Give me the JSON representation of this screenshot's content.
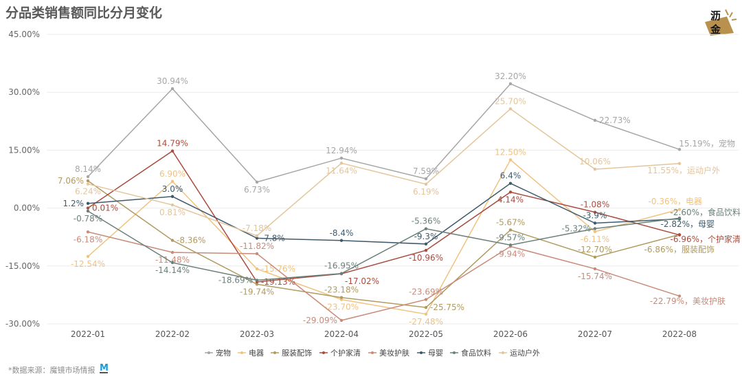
{
  "chart_data": {
    "type": "line",
    "title": "分品类销售额同比分月变化",
    "categories": [
      "2022-01",
      "2022-02",
      "2022-03",
      "2022-04",
      "2022-05",
      "2022-06",
      "2022-07",
      "2022-08"
    ],
    "ylim": [
      -30,
      45
    ],
    "yticks": [
      "-30.00%",
      "-15.00%",
      "0.00%",
      "15.00%",
      "30.00%",
      "45.00%"
    ],
    "ytick_values": [
      -30,
      -15,
      0,
      15,
      30,
      45
    ],
    "grid": true,
    "legend_position": "bottom",
    "series": [
      {
        "name": "宠物",
        "color": "#a6a6a6",
        "values": [
          8.14,
          30.94,
          6.73,
          12.94,
          7.59,
          32.2,
          22.73,
          15.19
        ],
        "labels": [
          "8.14%",
          "30.94%",
          "6.73%",
          "12.94%",
          "7.59%",
          "32.20%",
          "22.73%",
          "15.19%，宠物"
        ]
      },
      {
        "name": "电器",
        "color": "#f0c27f",
        "values": [
          -12.54,
          6.9,
          -15.76,
          -23.7,
          -27.48,
          12.5,
          -6.11,
          -0.36
        ],
        "labels": [
          "-12.54%",
          "6.90%",
          "-15.76%",
          "-23.70%",
          "-27.48%",
          "12.50%",
          "-6.11%",
          "-0.36%，电器"
        ]
      },
      {
        "name": "服装配饰",
        "color": "#b09a5e",
        "values": [
          7.06,
          -8.36,
          -19.74,
          -23.18,
          -25.75,
          -5.67,
          -12.7,
          -6.86
        ],
        "labels": [
          "7.06%",
          "-8.36%",
          "-19.74%",
          "-23.18%",
          "-25.75%",
          "-5.67%",
          "-12.70%",
          "-6.86%，服装配饰"
        ]
      },
      {
        "name": "个护家清",
        "color": "#a84c3e",
        "values": [
          0.01,
          14.79,
          -19.13,
          -17.02,
          -10.96,
          4.14,
          -1.08,
          -6.96
        ],
        "labels": [
          "0.01%",
          "14.79%",
          "-19.13%",
          "-17.02%",
          "-10.96%",
          "4.14%",
          "-1.08%",
          "-6.96%，个护家清"
        ]
      },
      {
        "name": "美妆护肤",
        "color": "#c98a78",
        "values": [
          -6.18,
          -11.48,
          -11.82,
          -29.09,
          -23.69,
          -9.94,
          -15.74,
          -22.79
        ],
        "labels": [
          "-6.18%",
          "-11.48%",
          "-11.82%",
          "-29.09%",
          "-23.69%",
          "-9.94%",
          "-15.74%",
          "-22.79%，美妆护肤"
        ]
      },
      {
        "name": "母婴",
        "color": "#3f5a6b",
        "values": [
          1.2,
          3.0,
          -7.8,
          -8.4,
          -9.3,
          6.4,
          -3.9,
          -2.82
        ],
        "labels": [
          "1.2%",
          "3.0%",
          "-7.8%",
          "-8.4%",
          "-9.3%",
          "6.4%",
          "-3.9%",
          "-2.82%，母婴"
        ]
      },
      {
        "name": "食品饮料",
        "color": "#6b8079",
        "values": [
          -0.78,
          -14.14,
          -18.69,
          -16.95,
          -5.36,
          -9.57,
          -5.32,
          -2.6
        ],
        "labels": [
          "-0.78%",
          "-14.14%",
          "-18.69%",
          "-16.95%",
          "-5.36%",
          "-9.57%",
          "-5.32%",
          "-2.60%，食品饮料"
        ]
      },
      {
        "name": "运动户外",
        "color": "#e3c59b",
        "values": [
          6.24,
          0.81,
          -7.18,
          11.64,
          6.19,
          25.7,
          10.06,
          11.55
        ],
        "labels": [
          "6.24%",
          "0.81%",
          "-7.18%",
          "11.64%",
          "6.19%",
          "25.70%",
          "10.06%",
          "11.55%，运动户外"
        ]
      }
    ]
  },
  "source": "*数据来源：魔镜市场情报",
  "logo_text": "沥金",
  "source_logo_text": "M"
}
